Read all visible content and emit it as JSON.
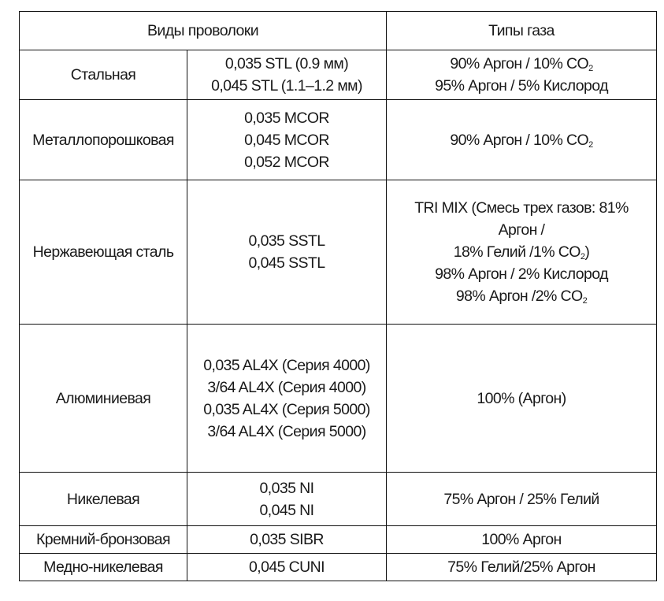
{
  "header": {
    "wire_types": "Виды проволоки",
    "gas_types": "Типы газа"
  },
  "rows": [
    {
      "wire": "Стальная",
      "sizes": [
        {
          "t": "0,035 STL (0.9 мм)"
        },
        {
          "t": "0,045 STL (1.1–1.2 мм)"
        }
      ],
      "gases": [
        {
          "t": "90% Аргон / 10% CO",
          "sub": "2"
        },
        {
          "t": "95% Аргон / 5% Кислород"
        }
      ]
    },
    {
      "wire": "Металлопорошковая",
      "sizes": [
        {
          "t": "0,035 MCOR"
        },
        {
          "t": "0,045 MCOR"
        },
        {
          "t": "0,052 MCOR"
        }
      ],
      "gases": [
        {
          "t": "90% Аргон / 10% CO",
          "sub": "2"
        }
      ]
    },
    {
      "wire": "Нержавеющая сталь",
      "sizes": [
        {
          "t": "0,035 SSTL"
        },
        {
          "t": "0,045 SSTL"
        }
      ],
      "gases": [
        {
          "t": "TRI MIX (Смесь трех газов: 81%"
        },
        {
          "t": "Аргон /"
        },
        {
          "t": "18% Гелий /1% CO",
          "sub": "2",
          "after": ")"
        },
        {
          "t": "98% Аргон / 2% Кислород"
        },
        {
          "t": "98% Аргон /2% CO",
          "sub": "2"
        }
      ]
    },
    {
      "wire": "Алюминиевая",
      "sizes": [
        {
          "t": "0,035 AL4X (Серия 4000)"
        },
        {
          "t": "3/64 AL4X (Серия 4000)"
        },
        {
          "t": "0,035 AL4X (Серия 5000)"
        },
        {
          "t": "3/64 AL4X (Серия 5000)"
        }
      ],
      "gases": [
        {
          "t": "100% (Аргон)"
        }
      ]
    },
    {
      "wire": "Никелевая",
      "sizes": [
        {
          "t": "0,035 NI"
        },
        {
          "t": "0,045 NI"
        }
      ],
      "gases": [
        {
          "t": "75% Аргон / 25% Гелий"
        }
      ]
    },
    {
      "wire": "Кремний-бронзовая",
      "sizes": [
        {
          "t": "0,035 SIBR"
        }
      ],
      "gases": [
        {
          "t": "100% Аргон"
        }
      ]
    },
    {
      "wire": "Медно-никелевая",
      "sizes": [
        {
          "t": "0,045 CUNI"
        }
      ],
      "gases": [
        {
          "t": "75% Гелий/25% Аргон"
        }
      ]
    }
  ]
}
